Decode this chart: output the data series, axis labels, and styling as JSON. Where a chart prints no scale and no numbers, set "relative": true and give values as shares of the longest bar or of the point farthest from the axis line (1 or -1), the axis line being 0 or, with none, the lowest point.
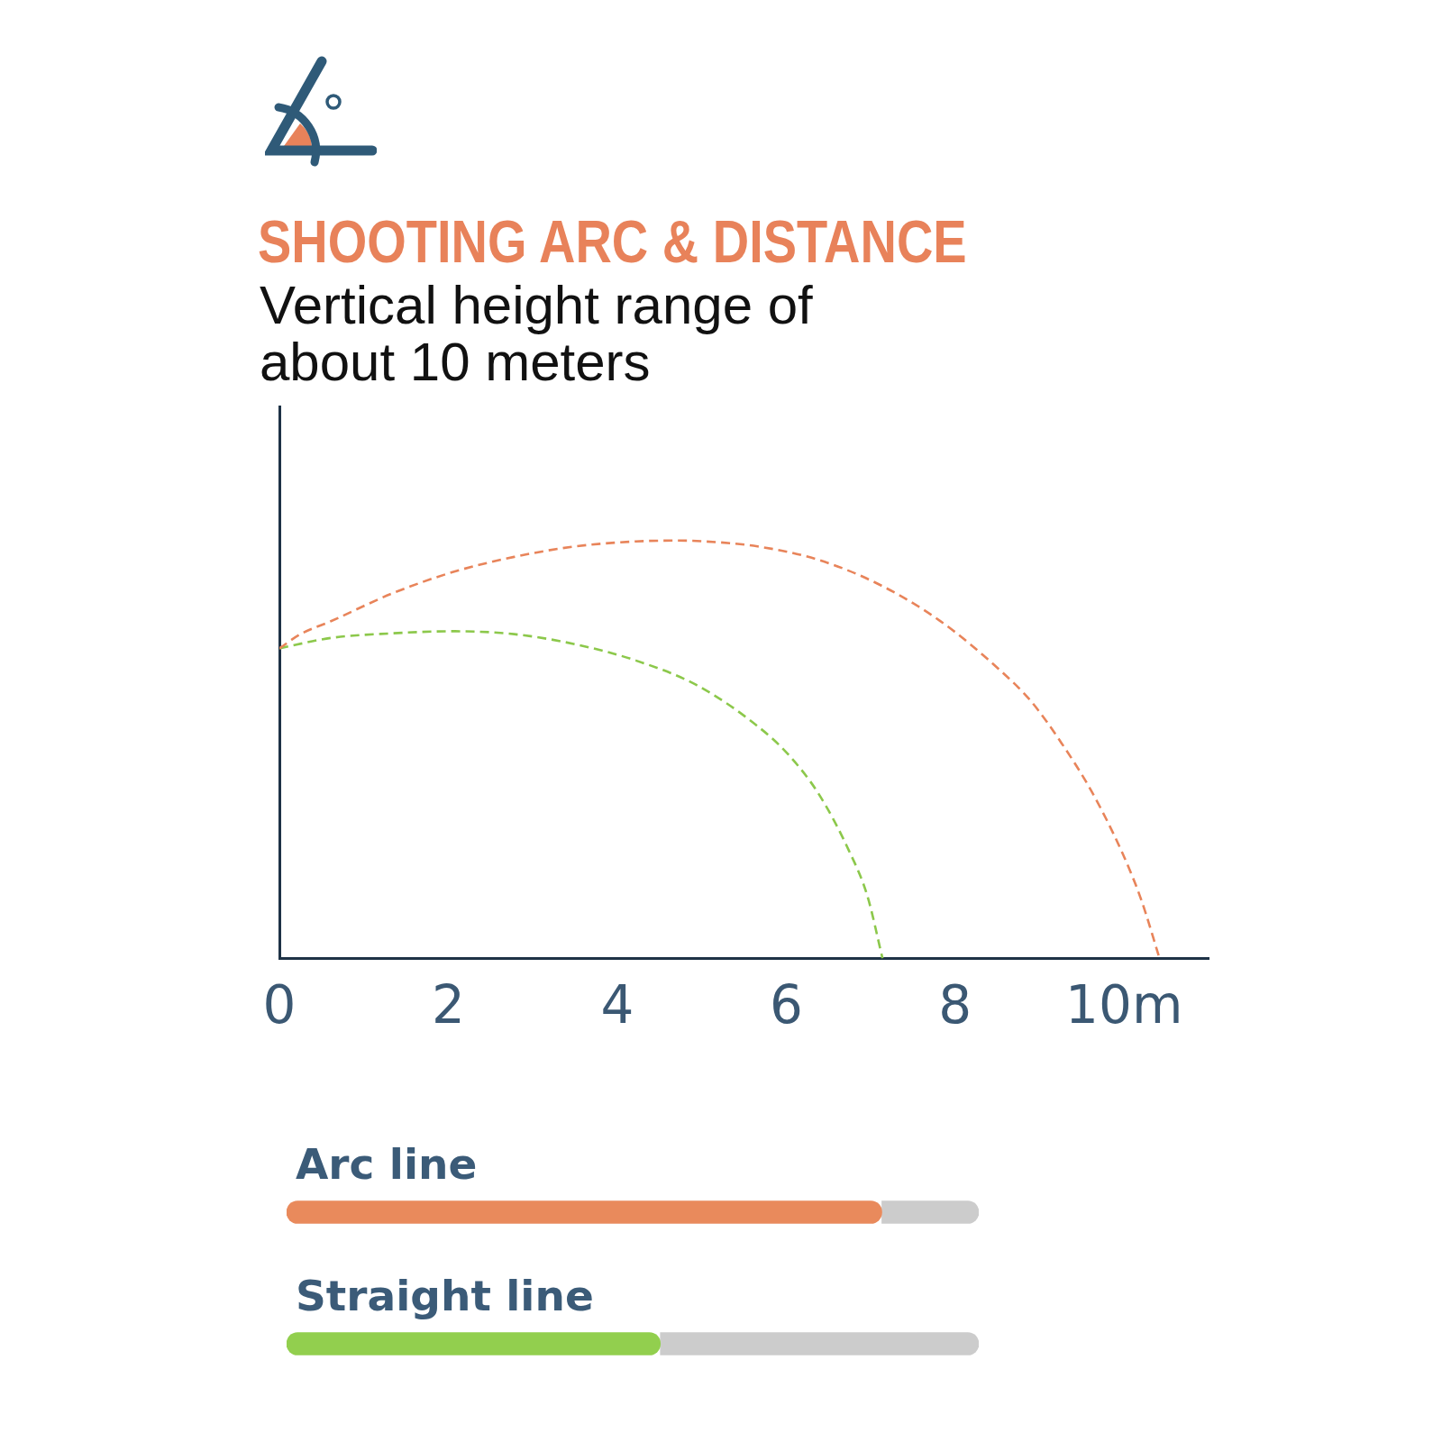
{
  "chart_data": [
    {
      "type": "line",
      "title": "SHOOTING ARC & DISTANCE",
      "subtitle": "Vertical height range of about 10 meters",
      "relative": true,
      "xlim": [
        0,
        11
      ],
      "xticks": [
        0,
        2,
        4,
        6,
        8,
        {
          "value": 10,
          "label": "10m"
        }
      ],
      "line_style": "dashed",
      "marker": "none",
      "series": [
        {
          "color": "#e8845a",
          "x": [
            0,
            0.25,
            0.61,
            1.33,
            2.06,
            2.78,
            3.5,
            4.22,
            4.65,
            4.94,
            5.66,
            6.38,
            7.1,
            7.82,
            8.54,
            8.9,
            9.26,
            9.62,
            9.98,
            10.2,
            10.42
          ],
          "values": [
            0.742,
            0.776,
            0.807,
            0.873,
            0.925,
            0.961,
            0.986,
            0.998,
            1,
            0.999,
            0.986,
            0.954,
            0.895,
            0.808,
            0.688,
            0.615,
            0.515,
            0.398,
            0.252,
            0.142,
            0
          ]
        },
        {
          "color": "#8cc84b",
          "x": [
            0,
            0.61,
            1.33,
            2.06,
            2.78,
            3.5,
            4.22,
            4.94,
            5.66,
            6.02,
            6.38,
            6.74,
            6.96,
            7.14
          ],
          "values": [
            0.742,
            0.767,
            0.778,
            0.783,
            0.776,
            0.752,
            0.713,
            0.654,
            0.556,
            0.489,
            0.395,
            0.259,
            0.15,
            0
          ]
        }
      ]
    },
    {
      "type": "bar",
      "orientation": "horizontal",
      "stacked": true,
      "relative": true,
      "categories": [
        "Arc line",
        "Straight line"
      ],
      "series": [
        {
          "colors": [
            "#e98a5c",
            "#92cf4e"
          ],
          "values": [
            0.86,
            0.54
          ]
        },
        {
          "color": "#cccccc",
          "values": [
            0.14,
            0.46
          ]
        }
      ]
    }
  ]
}
